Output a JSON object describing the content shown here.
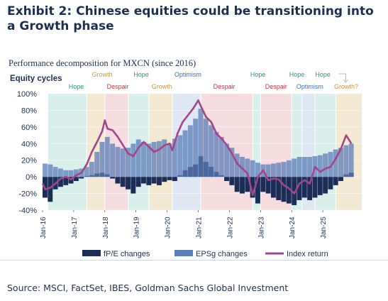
{
  "exhibit_title": "Exhibit 2: Chinese equities could be transitioning into a Growth phase",
  "source": "Source: MSCI, FactSet, IBES, Goldman Sachs Global Investment",
  "chart_data": {
    "type": "bar",
    "title": "Performance decomposition for MXCN (since 2016)",
    "subtitle": "Equity cycles",
    "ylim": [
      -0.4,
      1.0
    ],
    "y_ticks": [
      "100%",
      "80%",
      "60%",
      "40%",
      "20%",
      "0%",
      "-20%",
      "-40%"
    ],
    "x_start": "2016-01",
    "x_end": "2026-04",
    "x_ticks": [
      "Jan-16",
      "Jan-17",
      "Jan-18",
      "Jan-19",
      "Jan-20",
      "Jan-21",
      "Jan-22",
      "Jan-23",
      "Jan-24",
      "Jan-25"
    ],
    "x_tick_dates": [
      "2016-01",
      "2017-01",
      "2018-01",
      "2019-01",
      "2020-01",
      "2021-01",
      "2022-01",
      "2023-01",
      "2024-01",
      "2025-01"
    ],
    "phase_colors": {
      "Hope": "#d9efec",
      "Growth": "#f3e9d2",
      "Despair": "#f4dcdf",
      "Optimism": "#dfe7f3"
    },
    "phase_label_colors": {
      "Hope": "#2f8f83",
      "Growth": "#c8963e",
      "Despair": "#c03545",
      "Optimism": "#3d6fb4"
    },
    "phases": [
      {
        "name": "Hope",
        "start": "2016-03",
        "end": "2017-06"
      },
      {
        "name": "Growth",
        "start": "2017-06",
        "end": "2018-01"
      },
      {
        "name": "Despair",
        "start": "2018-01",
        "end": "2018-10"
      },
      {
        "name": "Hope",
        "start": "2018-10",
        "end": "2019-06"
      },
      {
        "name": "Growth",
        "start": "2019-06",
        "end": "2020-03"
      },
      {
        "name": "Optimism",
        "start": "2020-03",
        "end": "2021-02"
      },
      {
        "name": "Despair",
        "start": "2021-02",
        "end": "2022-10"
      },
      {
        "name": "Hope",
        "start": "2022-10",
        "end": "2023-01"
      },
      {
        "name": "Despair",
        "start": "2023-01",
        "end": "2024-01"
      },
      {
        "name": "Hope",
        "start": "2024-01",
        "end": "2024-05"
      },
      {
        "name": "Optimism",
        "start": "2024-05",
        "end": "2024-10"
      },
      {
        "name": "Hope",
        "start": "2024-10",
        "end": "2025-06"
      },
      {
        "name": "Growth?",
        "start": "2025-06",
        "end": "2026-04"
      }
    ],
    "phase_labels_top": [
      {
        "text": "Growth",
        "phase": "Growth",
        "date": "2017-12"
      },
      {
        "text": "Hope",
        "phase": "Hope",
        "date": "2019-03"
      },
      {
        "text": "Optimism",
        "phase": "Optimism",
        "date": "2020-09"
      },
      {
        "text": "Hope",
        "phase": "Hope",
        "date": "2022-12"
      },
      {
        "text": "Hope",
        "phase": "Hope",
        "date": "2024-03"
      },
      {
        "text": "Hope",
        "phase": "Hope",
        "date": "2025-01"
      }
    ],
    "phase_labels_bottom": [
      {
        "text": "Hope",
        "phase": "Hope",
        "date": "2017-02"
      },
      {
        "text": "Despair",
        "phase": "Despair",
        "date": "2018-06"
      },
      {
        "text": "Growth",
        "phase": "Growth",
        "date": "2019-11"
      },
      {
        "text": "Despair",
        "phase": "Despair",
        "date": "2021-11"
      },
      {
        "text": "Despair",
        "phase": "Despair",
        "date": "2023-07"
      },
      {
        "text": "Optimism",
        "phase": "Optimism",
        "date": "2024-08"
      },
      {
        "text": "Growth?",
        "phase": "Growth",
        "date": "2025-10"
      }
    ],
    "series": [
      {
        "name": "fP/E changes",
        "color": "#1c2e55",
        "kind": "bar",
        "dates": [
          "2016-01",
          "2016-03",
          "2016-05",
          "2016-07",
          "2016-09",
          "2016-11",
          "2017-01",
          "2017-03",
          "2017-05",
          "2017-07",
          "2017-09",
          "2017-11",
          "2018-01",
          "2018-03",
          "2018-05",
          "2018-07",
          "2018-09",
          "2018-11",
          "2019-01",
          "2019-03",
          "2019-05",
          "2019-07",
          "2019-09",
          "2019-11",
          "2020-01",
          "2020-03",
          "2020-05",
          "2020-07",
          "2020-09",
          "2020-11",
          "2021-01",
          "2021-03",
          "2021-05",
          "2021-07",
          "2021-09",
          "2021-11",
          "2022-01",
          "2022-03",
          "2022-05",
          "2022-07",
          "2022-09",
          "2022-11",
          "2023-01",
          "2023-03",
          "2023-05",
          "2023-07",
          "2023-09",
          "2023-11",
          "2024-01",
          "2024-03",
          "2024-05",
          "2024-07",
          "2024-09",
          "2024-11",
          "2025-01",
          "2025-03",
          "2025-05",
          "2025-07",
          "2025-09",
          "2025-11"
        ],
        "values": [
          -0.25,
          -0.3,
          -0.15,
          -0.12,
          -0.1,
          -0.08,
          -0.05,
          -0.02,
          0.01,
          0.02,
          0.04,
          0.05,
          0.03,
          -0.02,
          -0.08,
          -0.12,
          -0.15,
          -0.2,
          -0.12,
          -0.08,
          -0.1,
          -0.08,
          -0.1,
          -0.06,
          -0.04,
          -0.05,
          0.02,
          0.08,
          0.12,
          0.15,
          0.25,
          0.18,
          0.12,
          0.06,
          0.02,
          -0.05,
          -0.1,
          -0.18,
          -0.2,
          -0.18,
          -0.25,
          -0.32,
          -0.18,
          -0.2,
          -0.25,
          -0.28,
          -0.3,
          -0.32,
          -0.34,
          -0.28,
          -0.25,
          -0.28,
          -0.25,
          -0.22,
          -0.2,
          -0.15,
          -0.1,
          -0.05,
          0.03,
          0.05
        ]
      },
      {
        "name": "EPSg changes",
        "color": "#5b7eb8",
        "kind": "bar",
        "dates": [
          "2016-01",
          "2016-03",
          "2016-05",
          "2016-07",
          "2016-09",
          "2016-11",
          "2017-01",
          "2017-03",
          "2017-05",
          "2017-07",
          "2017-09",
          "2017-11",
          "2018-01",
          "2018-03",
          "2018-05",
          "2018-07",
          "2018-09",
          "2018-11",
          "2019-01",
          "2019-03",
          "2019-05",
          "2019-07",
          "2019-09",
          "2019-11",
          "2020-01",
          "2020-03",
          "2020-05",
          "2020-07",
          "2020-09",
          "2020-11",
          "2021-01",
          "2021-03",
          "2021-05",
          "2021-07",
          "2021-09",
          "2021-11",
          "2022-01",
          "2022-03",
          "2022-05",
          "2022-07",
          "2022-09",
          "2022-11",
          "2023-01",
          "2023-03",
          "2023-05",
          "2023-07",
          "2023-09",
          "2023-11",
          "2024-01",
          "2024-03",
          "2024-05",
          "2024-07",
          "2024-09",
          "2024-11",
          "2025-01",
          "2025-03",
          "2025-05",
          "2025-07",
          "2025-09",
          "2025-11"
        ],
        "values": [
          0.16,
          0.15,
          0.12,
          0.1,
          0.08,
          0.08,
          0.09,
          0.1,
          0.12,
          0.18,
          0.3,
          0.42,
          0.48,
          0.4,
          0.36,
          0.34,
          0.35,
          0.4,
          0.45,
          0.42,
          0.4,
          0.42,
          0.43,
          0.45,
          0.4,
          0.46,
          0.5,
          0.56,
          0.62,
          0.7,
          0.82,
          0.7,
          0.62,
          0.54,
          0.48,
          0.4,
          0.35,
          0.28,
          0.24,
          0.22,
          0.2,
          0.17,
          0.15,
          0.15,
          0.16,
          0.17,
          0.18,
          0.2,
          0.22,
          0.24,
          0.24,
          0.24,
          0.25,
          0.26,
          0.28,
          0.3,
          0.33,
          0.35,
          0.38,
          0.4
        ]
      },
      {
        "name": "Index return",
        "color": "#a2468b",
        "kind": "line",
        "dates": [
          "2016-01",
          "2016-02",
          "2016-04",
          "2016-06",
          "2016-08",
          "2016-10",
          "2016-12",
          "2017-02",
          "2017-04",
          "2017-06",
          "2017-08",
          "2017-10",
          "2017-12",
          "2018-01",
          "2018-02",
          "2018-04",
          "2018-06",
          "2018-08",
          "2018-10",
          "2018-12",
          "2019-02",
          "2019-04",
          "2019-06",
          "2019-08",
          "2019-10",
          "2019-12",
          "2020-02",
          "2020-03",
          "2020-05",
          "2020-07",
          "2020-09",
          "2020-11",
          "2021-01",
          "2021-02",
          "2021-04",
          "2021-06",
          "2021-08",
          "2021-10",
          "2021-12",
          "2022-02",
          "2022-04",
          "2022-06",
          "2022-08",
          "2022-10",
          "2022-12",
          "2023-02",
          "2023-04",
          "2023-06",
          "2023-08",
          "2023-10",
          "2023-12",
          "2024-02",
          "2024-04",
          "2024-06",
          "2024-08",
          "2024-10",
          "2024-12",
          "2025-02",
          "2025-04",
          "2025-06",
          "2025-08",
          "2025-10",
          "2025-12"
        ],
        "values": [
          -0.08,
          -0.15,
          -0.13,
          -0.08,
          -0.02,
          0.0,
          -0.03,
          0.02,
          0.05,
          0.15,
          0.3,
          0.42,
          0.55,
          0.68,
          0.58,
          0.56,
          0.48,
          0.38,
          0.28,
          0.25,
          0.35,
          0.42,
          0.36,
          0.3,
          0.33,
          0.38,
          0.4,
          0.32,
          0.52,
          0.66,
          0.74,
          0.82,
          0.92,
          0.85,
          0.72,
          0.66,
          0.52,
          0.46,
          0.38,
          0.28,
          0.16,
          0.1,
          0.04,
          -0.22,
          0.0,
          0.08,
          -0.04,
          -0.02,
          -0.03,
          -0.1,
          -0.14,
          -0.2,
          -0.08,
          -0.04,
          -0.08,
          0.12,
          0.06,
          0.1,
          0.12,
          0.22,
          0.34,
          0.5,
          0.4
        ]
      }
    ],
    "legend": [
      "fP/E changes",
      "EPSg changes",
      "Index return"
    ],
    "legend_placement": "bottom"
  }
}
